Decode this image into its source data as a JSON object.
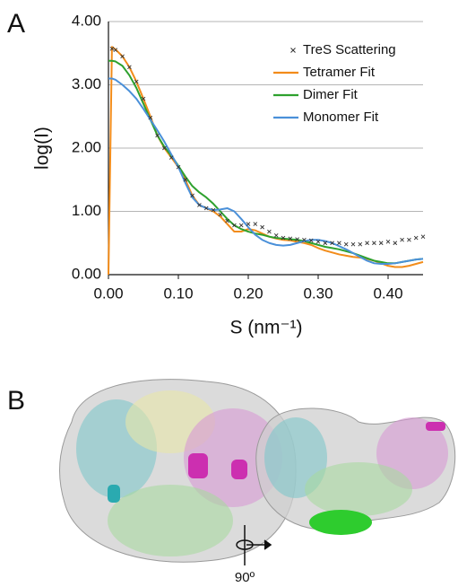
{
  "panel_labels": [
    "A",
    "B"
  ],
  "rotation_label": "90º",
  "chart_data": {
    "type": "line",
    "x_label": "S (nm⁻¹)",
    "y_label": "log(I)",
    "x": [
      0,
      0.005,
      0.01,
      0.02,
      0.03,
      0.04,
      0.05,
      0.06,
      0.07,
      0.08,
      0.09,
      0.1,
      0.11,
      0.12,
      0.13,
      0.14,
      0.15,
      0.16,
      0.17,
      0.18,
      0.19,
      0.2,
      0.21,
      0.22,
      0.23,
      0.24,
      0.25,
      0.26,
      0.27,
      0.28,
      0.29,
      0.3,
      0.31,
      0.32,
      0.33,
      0.34,
      0.35,
      0.36,
      0.37,
      0.38,
      0.39,
      0.4,
      0.41,
      0.42,
      0.43,
      0.44,
      0.45
    ],
    "series": [
      {
        "name": "TreS Scattering",
        "color": "#333333",
        "mode": "markers",
        "values": [
          null,
          3.57,
          3.55,
          3.45,
          3.28,
          3.05,
          2.78,
          2.48,
          2.2,
          2.0,
          1.85,
          1.7,
          1.5,
          1.25,
          1.1,
          1.05,
          1.02,
          0.95,
          0.85,
          0.78,
          0.78,
          0.8,
          0.8,
          0.75,
          0.68,
          0.62,
          0.58,
          0.57,
          0.56,
          0.55,
          0.54,
          0.52,
          0.5,
          0.5,
          0.5,
          0.48,
          0.48,
          0.48,
          0.5,
          0.5,
          0.5,
          0.52,
          0.5,
          0.55,
          0.55,
          0.58,
          0.6
        ]
      },
      {
        "name": "Tetramer Fit",
        "color": "#f28c1a",
        "mode": "line",
        "values": [
          0,
          3.6,
          3.56,
          3.45,
          3.28,
          3.05,
          2.78,
          2.5,
          2.2,
          2.0,
          1.85,
          1.7,
          1.5,
          1.25,
          1.1,
          1.05,
          1.0,
          0.92,
          0.8,
          0.68,
          0.68,
          0.72,
          0.7,
          0.65,
          0.6,
          0.57,
          0.55,
          0.54,
          0.52,
          0.5,
          0.47,
          0.42,
          0.38,
          0.35,
          0.32,
          0.3,
          0.28,
          0.27,
          0.25,
          0.22,
          0.18,
          0.14,
          0.12,
          0.12,
          0.14,
          0.17,
          0.2
        ]
      },
      {
        "name": "Dimer Fit",
        "color": "#2ea12e",
        "mode": "line",
        "values": [
          3.38,
          3.38,
          3.37,
          3.3,
          3.15,
          2.95,
          2.7,
          2.45,
          2.2,
          2.02,
          1.88,
          1.72,
          1.55,
          1.4,
          1.3,
          1.22,
          1.12,
          1.0,
          0.88,
          0.78,
          0.72,
          0.68,
          0.65,
          0.63,
          0.6,
          0.58,
          0.57,
          0.56,
          0.55,
          0.53,
          0.5,
          0.47,
          0.44,
          0.42,
          0.4,
          0.37,
          0.34,
          0.3,
          0.26,
          0.22,
          0.2,
          0.18,
          0.18,
          0.2,
          0.22,
          0.24,
          0.25
        ]
      },
      {
        "name": "Monomer Fit",
        "color": "#4a90d9",
        "mode": "line",
        "values": [
          3.1,
          3.1,
          3.08,
          3.0,
          2.9,
          2.78,
          2.62,
          2.45,
          2.28,
          2.1,
          1.9,
          1.7,
          1.45,
          1.22,
          1.1,
          1.05,
          1.02,
          1.03,
          1.05,
          1.0,
          0.88,
          0.75,
          0.63,
          0.55,
          0.5,
          0.47,
          0.46,
          0.47,
          0.5,
          0.53,
          0.55,
          0.55,
          0.53,
          0.5,
          0.45,
          0.4,
          0.34,
          0.28,
          0.22,
          0.18,
          0.17,
          0.17,
          0.18,
          0.2,
          0.22,
          0.24,
          0.25
        ]
      }
    ],
    "xlim": [
      0,
      0.45
    ],
    "ylim": [
      0,
      4
    ],
    "xticks": [
      {
        "value": 0,
        "label": "0.00"
      },
      {
        "value": 0.1,
        "label": "0.10"
      },
      {
        "value": 0.2,
        "label": "0.20"
      },
      {
        "value": 0.3,
        "label": "0.30"
      },
      {
        "value": 0.4,
        "label": "0.40"
      }
    ],
    "yticks": [
      {
        "value": 0,
        "label": "0.00"
      },
      {
        "value": 1,
        "label": "1.00"
      },
      {
        "value": 2,
        "label": "2.00"
      },
      {
        "value": 3,
        "label": "3.00"
      },
      {
        "value": 4,
        "label": "4.00"
      }
    ],
    "grid": true
  }
}
